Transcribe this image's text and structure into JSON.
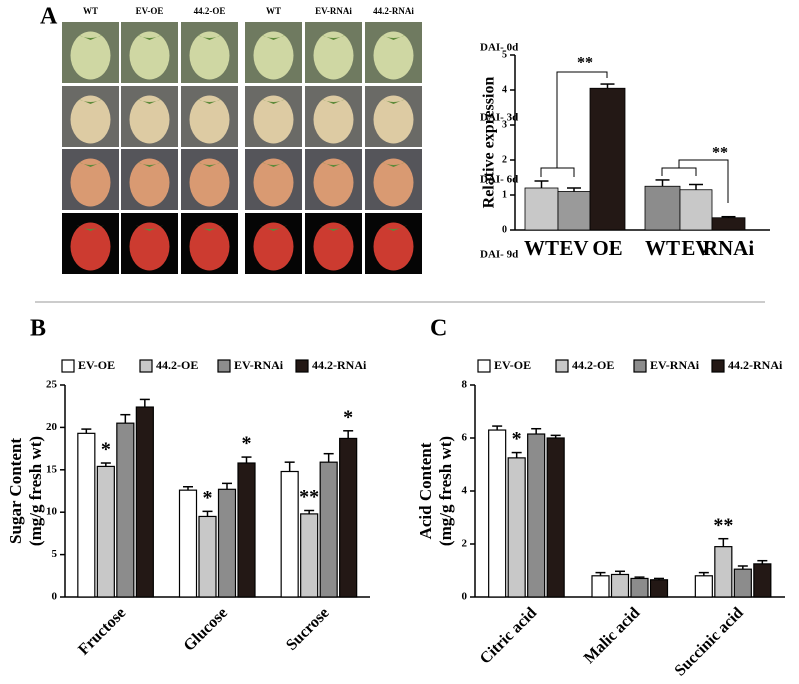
{
  "figure": {
    "photo_columns": [
      "WT",
      "EV-OE",
      "44.2-OE",
      "WT",
      "EV-RNAi",
      "44.2-RNAi"
    ],
    "photo_rows": [
      "DAI- 0d",
      "DAI- 3d",
      "DAI- 6d",
      "DAI- 9d"
    ]
  },
  "chart_data": [
    {
      "type": "bar",
      "panel": "A",
      "y_label": "Relative expression",
      "categories": [
        "WT",
        "EV",
        "OE",
        "WT",
        "EV",
        "RNAi"
      ],
      "values": [
        1.2,
        1.1,
        4.05,
        1.25,
        1.15,
        0.35
      ],
      "errors": [
        0.2,
        0.1,
        0.12,
        0.18,
        0.15,
        0.03
      ],
      "colors": [
        "#c8c8c8",
        "#9a9a9a",
        "#231815",
        "#8c8c8c",
        "#c8c8c8",
        "#231815"
      ],
      "annotations": [
        "**",
        "**"
      ],
      "ylim": [
        0,
        5
      ],
      "yticks": [
        0,
        1,
        2,
        3,
        4,
        5
      ]
    },
    {
      "type": "bar",
      "panel": "B",
      "y_label": [
        "Sugar Content",
        "(mg/g fresh wt)"
      ],
      "categories": [
        "Fructose",
        "Glucose",
        "Sucrose"
      ],
      "series": [
        {
          "name": "EV-OE",
          "color": "#ffffff",
          "values": [
            19.3,
            12.6,
            14.8
          ],
          "errors": [
            0.5,
            0.4,
            1.1
          ],
          "significance": [
            null,
            null,
            null
          ]
        },
        {
          "name": "44.2-OE",
          "color": "#c8c8c8",
          "values": [
            15.4,
            9.5,
            9.8
          ],
          "errors": [
            0.4,
            0.6,
            0.4
          ],
          "significance": [
            "*",
            "*",
            "**"
          ]
        },
        {
          "name": "EV-RNAi",
          "color": "#8c8c8c",
          "values": [
            20.5,
            12.7,
            15.9
          ],
          "errors": [
            1.0,
            0.7,
            1.0
          ],
          "significance": [
            null,
            null,
            null
          ]
        },
        {
          "name": "44.2-RNAi",
          "color": "#231815",
          "values": [
            22.4,
            15.8,
            18.7
          ],
          "errors": [
            0.9,
            0.7,
            0.9
          ],
          "significance": [
            null,
            "*",
            "*"
          ]
        }
      ],
      "ylim": [
        0,
        25
      ],
      "yticks": [
        0,
        5,
        10,
        15,
        20,
        25
      ]
    },
    {
      "type": "bar",
      "panel": "C",
      "y_label": [
        "Acid Content",
        "(mg/g fresh wt)"
      ],
      "categories": [
        "Citric acid",
        "Malic acid",
        "Succinic acid"
      ],
      "series": [
        {
          "name": "EV-OE",
          "color": "#ffffff",
          "values": [
            6.3,
            0.8,
            0.8
          ],
          "errors": [
            0.15,
            0.12,
            0.12
          ],
          "significance": [
            null,
            null,
            null
          ]
        },
        {
          "name": "44.2-OE",
          "color": "#c8c8c8",
          "values": [
            5.25,
            0.85,
            1.9
          ],
          "errors": [
            0.2,
            0.12,
            0.3
          ],
          "significance": [
            "*",
            null,
            "**"
          ]
        },
        {
          "name": "EV-RNAi",
          "color": "#8c8c8c",
          "values": [
            6.15,
            0.7,
            1.05
          ],
          "errors": [
            0.2,
            0.05,
            0.12
          ],
          "significance": [
            null,
            null,
            null
          ]
        },
        {
          "name": "44.2-RNAi",
          "color": "#231815",
          "values": [
            6.0,
            0.65,
            1.25
          ],
          "errors": [
            0.1,
            0.05,
            0.12
          ],
          "significance": [
            null,
            null,
            null
          ]
        }
      ],
      "ylim": [
        0,
        8
      ],
      "yticks": [
        0,
        2,
        4,
        6,
        8
      ]
    }
  ]
}
